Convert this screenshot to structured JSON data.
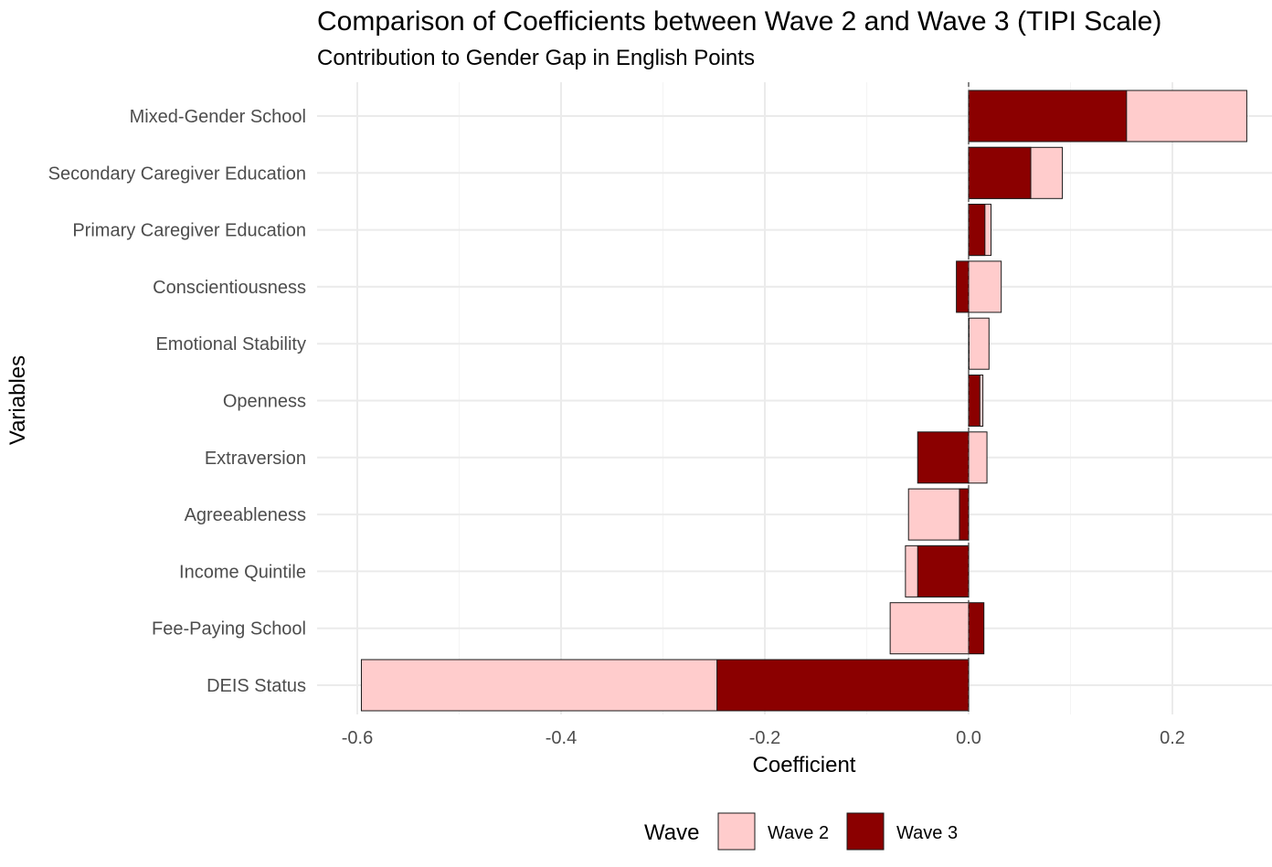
{
  "chart_data": {
    "type": "bar",
    "orientation": "horizontal",
    "title": "Comparison of Coefficients between Wave 2 and Wave 3 (TIPI Scale)",
    "subtitle": "Contribution to Gender Gap in English Points",
    "xlabel": "Coefficient",
    "ylabel": "Variables",
    "xlim": [
      -0.63,
      0.3
    ],
    "xticks": [
      -0.6,
      -0.4,
      -0.2,
      0.0,
      0.2
    ],
    "xtick_labels": [
      "-0.6",
      "-0.4",
      "-0.2",
      "0.0",
      "0.2"
    ],
    "categories": [
      "Mixed-Gender School",
      "Secondary Caregiver Education",
      "Primary Caregiver Education",
      "Conscientiousness",
      "Emotional Stability",
      "Openness",
      "Extraversion",
      "Agreeableness",
      "Income Quintile",
      "Fee-Paying School",
      "DEIS Status"
    ],
    "series": [
      {
        "name": "Wave 2",
        "color": "#ffcccc",
        "values": [
          0.273,
          0.092,
          0.022,
          0.032,
          0.02,
          0.014,
          0.018,
          -0.059,
          -0.062,
          -0.077,
          -0.596
        ]
      },
      {
        "name": "Wave 3",
        "color": "#8b0000",
        "values": [
          0.155,
          0.061,
          0.016,
          -0.012,
          0.0,
          0.011,
          -0.05,
          -0.009,
          -0.05,
          0.015,
          -0.247
        ]
      }
    ],
    "grid": true,
    "legend": {
      "title": "Wave",
      "position": "bottom",
      "entries": [
        "Wave 2",
        "Wave 3"
      ]
    }
  }
}
